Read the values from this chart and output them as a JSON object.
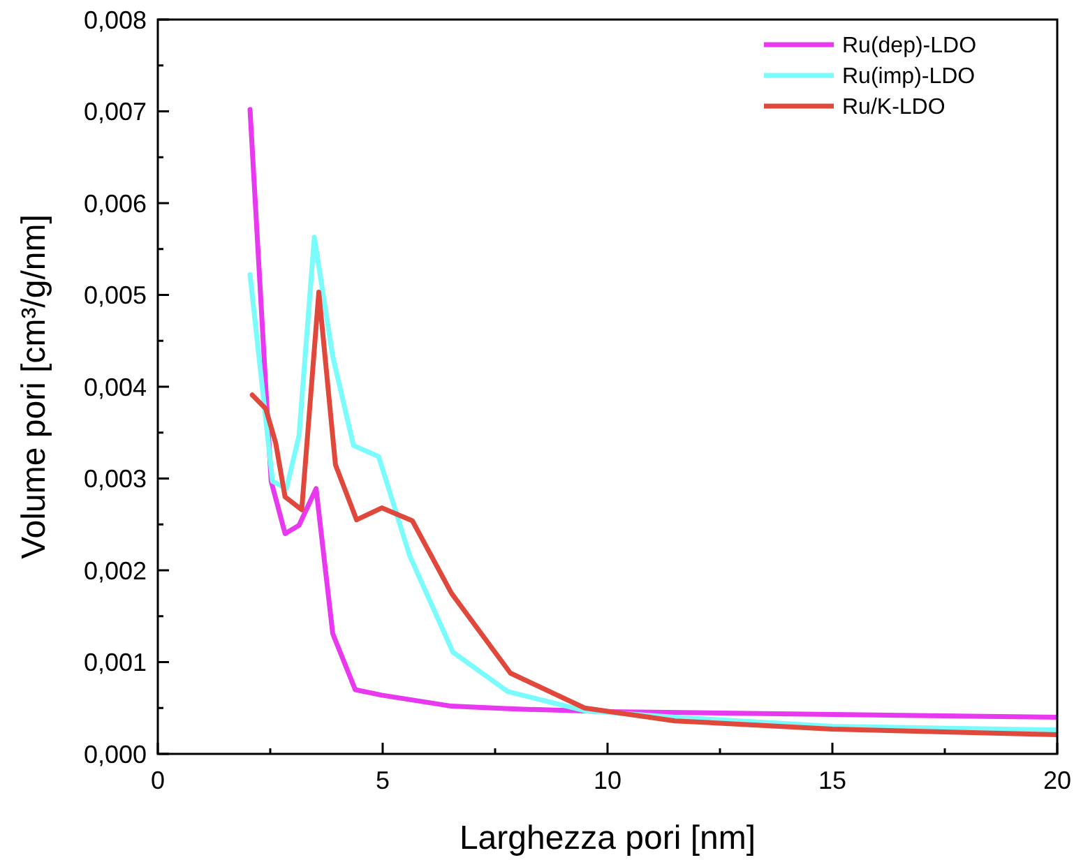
{
  "chart_data": {
    "type": "line",
    "xlabel": "Larghezza pori [nm]",
    "ylabel": "Volume pori [cm³/g/nm]",
    "xlim": [
      0,
      20
    ],
    "ylim": [
      0,
      0.008
    ],
    "xticks": [
      0,
      {
        "value": 2.5,
        "label": null
      },
      5,
      {
        "value": 7.5,
        "label": null
      },
      10,
      {
        "value": 12.5,
        "label": null
      },
      15,
      {
        "value": 17.5,
        "label": null
      },
      20
    ],
    "yticks": [
      {
        "value": 0,
        "label": "0,000"
      },
      {
        "value": 0.0005,
        "label": null
      },
      {
        "value": 0.001,
        "label": "0,001"
      },
      {
        "value": 0.0015,
        "label": null
      },
      {
        "value": 0.002,
        "label": "0,002"
      },
      {
        "value": 0.0025,
        "label": null
      },
      {
        "value": 0.003,
        "label": "0,003"
      },
      {
        "value": 0.0035,
        "label": null
      },
      {
        "value": 0.004,
        "label": "0,004"
      },
      {
        "value": 0.0045,
        "label": null
      },
      {
        "value": 0.005,
        "label": "0,005"
      },
      {
        "value": 0.0055,
        "label": null
      },
      {
        "value": 0.006,
        "label": "0,006"
      },
      {
        "value": 0.0065,
        "label": null
      },
      {
        "value": 0.007,
        "label": "0,007"
      },
      {
        "value": 0.0075,
        "label": null
      },
      {
        "value": 0.008,
        "label": "0,008"
      }
    ],
    "grid": false,
    "legend": "top right",
    "marker": "none",
    "line_style": "solid",
    "series": [
      {
        "name": "Ru(dep)-LDO",
        "color": "#e838f0",
        "x": [
          2.05,
          2.52,
          2.83,
          3.14,
          3.52,
          3.89,
          4.39,
          4.98,
          6.53,
          7.9,
          10,
          15,
          20
        ],
        "values": [
          0.00702,
          0.00297,
          0.0024,
          0.00249,
          0.00289,
          0.00131,
          0.0007,
          0.00064,
          0.00052,
          0.00049,
          0.00046,
          0.00043,
          0.0004
        ]
      },
      {
        "name": "Ru(imp)-LDO",
        "color": "#7afcfc",
        "x": [
          2.05,
          2.55,
          2.86,
          3.14,
          3.48,
          3.89,
          4.35,
          4.91,
          5.6,
          6.56,
          7.78,
          9.5,
          11.5,
          15,
          20
        ],
        "values": [
          0.00522,
          0.00297,
          0.00289,
          0.00347,
          0.00563,
          0.00433,
          0.00336,
          0.00324,
          0.00216,
          0.00111,
          0.00068,
          0.00047,
          0.0004,
          0.0003,
          0.00026
        ]
      },
      {
        "name": "Ru/K-LDO",
        "color": "#e0483c",
        "x": [
          2.1,
          2.4,
          2.62,
          2.83,
          3.2,
          3.58,
          3.95,
          4.42,
          4.98,
          5.66,
          6.53,
          7.84,
          9.49,
          11.5,
          15,
          20
        ],
        "values": [
          0.00391,
          0.00376,
          0.00339,
          0.0028,
          0.00266,
          0.00503,
          0.00315,
          0.00255,
          0.00268,
          0.00254,
          0.00175,
          0.00088,
          0.0005,
          0.00036,
          0.00027,
          0.00021
        ]
      }
    ]
  }
}
